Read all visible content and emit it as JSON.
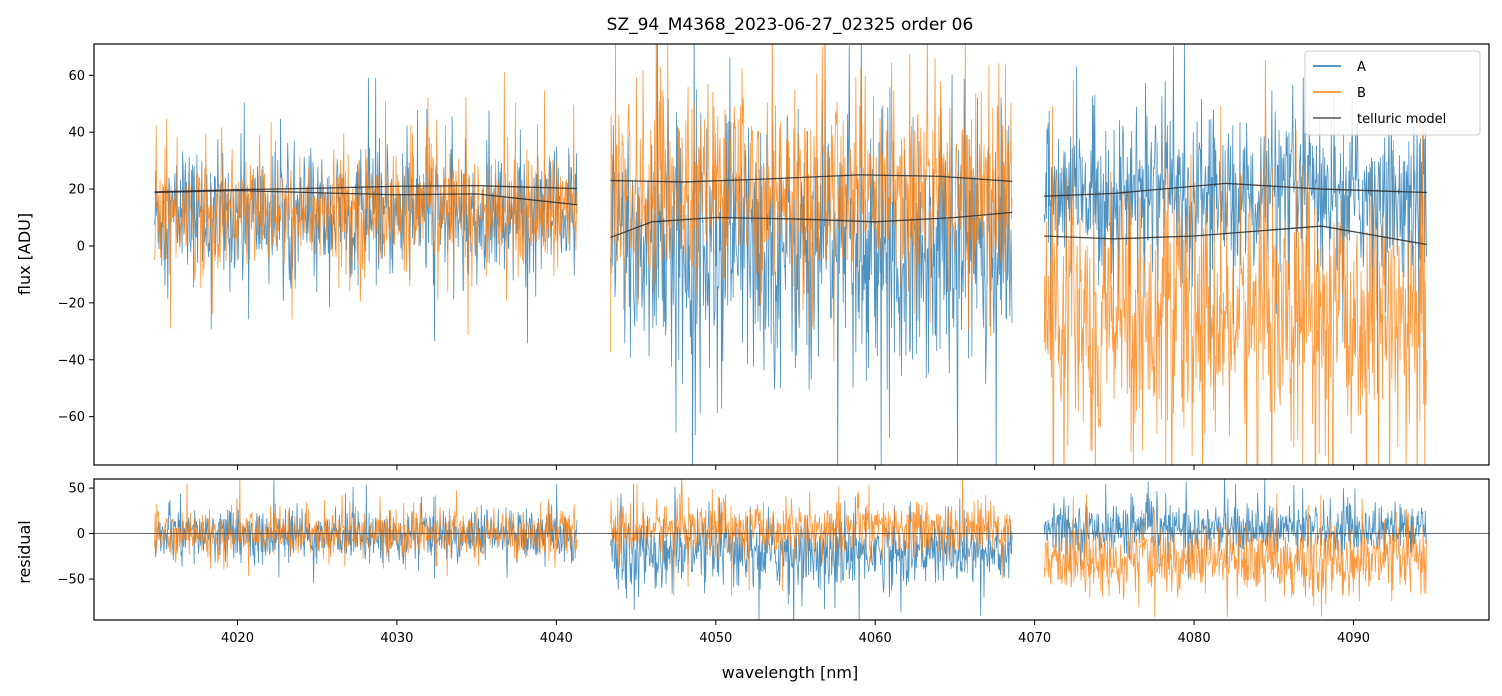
{
  "chart_data": {
    "type": "line",
    "title": "SZ_94_M4368_2023-06-27_02325  order 06",
    "xlabel": "wavelength [nm]",
    "xlim": [
      4011,
      4098.5
    ],
    "x_ticks": [
      4020,
      4030,
      4040,
      4050,
      4060,
      4070,
      4080,
      4090
    ],
    "x_tick_labels": [
      "4020",
      "4030",
      "4040",
      "4050",
      "4060",
      "4070",
      "4080",
      "4090"
    ],
    "segments": [
      [
        4014.8,
        4041.3
      ],
      [
        4043.4,
        4068.6
      ],
      [
        4070.6,
        4094.6
      ]
    ],
    "colors": {
      "A": "#1f77b4",
      "B": "#ff7f0e",
      "telluric": "#333333",
      "zero_line": "#555555"
    },
    "legend": {
      "position": "upper right",
      "entries": [
        "A",
        "B",
        "telluric model"
      ]
    },
    "panels": [
      {
        "name": "flux",
        "ylabel": "flux [ADU]",
        "ylim": [
          -77,
          71
        ],
        "y_ticks": [
          -60,
          -40,
          -20,
          0,
          20,
          40,
          60
        ],
        "y_tick_labels": [
          "−60",
          "−40",
          "−20",
          "0",
          "20",
          "40",
          "60"
        ],
        "noise_bands": [
          {
            "series": "A",
            "segment": 0,
            "center": 11,
            "spread": 15
          },
          {
            "series": "A",
            "segment": 1,
            "center": 0,
            "spread": 30
          },
          {
            "series": "A",
            "segment": 2,
            "center": 18,
            "spread": 18
          },
          {
            "series": "B",
            "segment": 0,
            "center": 12,
            "spread": 14
          },
          {
            "series": "B",
            "segment": 1,
            "center": 20,
            "spread": 22
          },
          {
            "series": "B",
            "segment": 2,
            "center": -25,
            "spread": 30
          }
        ],
        "telluric_model": [
          {
            "segment": 0,
            "x": [
              4014.8,
              4020,
              4025,
              4030,
              4035,
              4041.3
            ],
            "y": [
              19,
              19.8,
              20.3,
              21,
              21.2,
              20.2
            ]
          },
          {
            "segment": 0,
            "x": [
              4014.8,
              4020,
              4025,
              4030,
              4035,
              4041.3
            ],
            "y": [
              18.8,
              19.5,
              18.7,
              18,
              18.3,
              14.5
            ]
          },
          {
            "segment": 1,
            "x": [
              4043.4,
              4048,
              4053,
              4059,
              4064,
              4068.6
            ],
            "y": [
              23,
              22.5,
              23.5,
              25,
              24.5,
              22.7
            ]
          },
          {
            "segment": 1,
            "x": [
              4043.4,
              4046,
              4050,
              4055,
              4060,
              4065,
              4068.6
            ],
            "y": [
              3,
              8.5,
              10,
              9.5,
              8.5,
              10,
              11.8
            ]
          },
          {
            "segment": 2,
            "x": [
              4070.6,
              4075,
              4082,
              4088,
              4094.6
            ],
            "y": [
              17.5,
              18.5,
              22,
              20,
              18.8
            ]
          },
          {
            "segment": 2,
            "x": [
              4070.6,
              4075,
              4080,
              4088,
              4094.6
            ],
            "y": [
              3.5,
              2.5,
              3.5,
              7,
              0.5
            ]
          }
        ]
      },
      {
        "name": "residual",
        "ylabel": "residual",
        "ylim": [
          -95,
          60
        ],
        "y_ticks": [
          -50,
          0,
          50
        ],
        "y_tick_labels": [
          "−50",
          "0",
          "50"
        ],
        "zero_line": 0,
        "noise_bands": [
          {
            "series": "A",
            "segment": 0,
            "center": -2,
            "spread": 19
          },
          {
            "series": "A",
            "segment": 1,
            "center": -20,
            "spread": 26
          },
          {
            "series": "A",
            "segment": 2,
            "center": 5,
            "spread": 18
          },
          {
            "series": "B",
            "segment": 0,
            "center": 0,
            "spread": 17
          },
          {
            "series": "B",
            "segment": 1,
            "center": 5,
            "spread": 20
          },
          {
            "series": "B",
            "segment": 2,
            "center": -30,
            "spread": 25
          }
        ]
      }
    ]
  }
}
